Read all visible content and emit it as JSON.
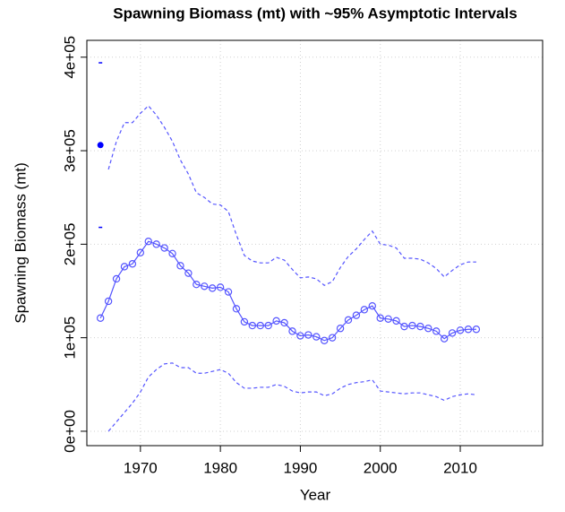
{
  "chart_data": {
    "type": "line",
    "title": "Spawning Biomass (mt) with ~95% Asymptotic Intervals",
    "xlabel": "Year",
    "ylabel": "Spawning Biomass (mt)",
    "x": [
      1965,
      1966,
      1967,
      1968,
      1969,
      1970,
      1971,
      1972,
      1973,
      1974,
      1975,
      1976,
      1977,
      1978,
      1979,
      1980,
      1981,
      1982,
      1983,
      1984,
      1985,
      1986,
      1987,
      1988,
      1989,
      1990,
      1991,
      1992,
      1993,
      1994,
      1995,
      1996,
      1997,
      1998,
      1999,
      2000,
      2001,
      2002,
      2003,
      2004,
      2005,
      2006,
      2007,
      2008,
      2009,
      2010,
      2011,
      2012
    ],
    "series": [
      {
        "color": "#5555ff",
        "linestyle": "solid",
        "markers": true,
        "values": [
          121000,
          139000,
          163000,
          176000,
          179000,
          191000,
          203000,
          200000,
          196000,
          190000,
          177000,
          169000,
          157000,
          155000,
          153000,
          154000,
          149000,
          131000,
          117000,
          113000,
          113000,
          113000,
          118000,
          116000,
          107000,
          102000,
          103000,
          101000,
          97000,
          100000,
          110000,
          119000,
          124000,
          130000,
          134000,
          121000,
          120000,
          118000,
          112000,
          113000,
          112000,
          110000,
          107000,
          99000,
          105000,
          108000,
          109000,
          109000
        ]
      },
      {
        "color": "#5555ff",
        "linestyle": "dashed",
        "markers": false,
        "values": [
          null,
          280000,
          310000,
          330000,
          330000,
          340000,
          348000,
          338000,
          325000,
          310000,
          290000,
          275000,
          255000,
          250000,
          243000,
          242000,
          235000,
          210000,
          188000,
          182000,
          180000,
          180000,
          186000,
          183000,
          173000,
          164000,
          165000,
          163000,
          156000,
          160000,
          175000,
          187000,
          195000,
          205000,
          214000,
          200000,
          199000,
          196000,
          185000,
          185000,
          184000,
          180000,
          174000,
          165000,
          172000,
          178000,
          181000,
          181000
        ]
      },
      {
        "color": "#5555ff",
        "linestyle": "dashed",
        "markers": false,
        "values": [
          null,
          0,
          10000,
          20000,
          30000,
          42000,
          58000,
          66000,
          72000,
          73000,
          68000,
          68000,
          62000,
          62000,
          64000,
          66000,
          62000,
          52000,
          46000,
          46000,
          47000,
          47000,
          50000,
          48000,
          43000,
          41000,
          42000,
          42000,
          38000,
          40000,
          46000,
          50000,
          52000,
          53000,
          55000,
          43000,
          42000,
          41000,
          40000,
          41000,
          41000,
          39000,
          37000,
          33000,
          37000,
          39000,
          40000,
          39000
        ]
      }
    ],
    "virgin": {
      "x": 1965,
      "value": 306000,
      "lower": 218000,
      "upper": 394000,
      "color": "#0000ff"
    },
    "xlim": [
      1963.3,
      2020.3
    ],
    "ylim": [
      -15400,
      418000
    ],
    "xticks": [
      1970,
      1980,
      1990,
      2000,
      2010
    ],
    "yticks": [
      {
        "value": 0,
        "label": "0e+00"
      },
      {
        "value": 100000,
        "label": "1e+05"
      },
      {
        "value": 200000,
        "label": "2e+05"
      },
      {
        "value": 300000,
        "label": "3e+05"
      },
      {
        "value": 400000,
        "label": "4e+05"
      }
    ],
    "grid": true
  }
}
